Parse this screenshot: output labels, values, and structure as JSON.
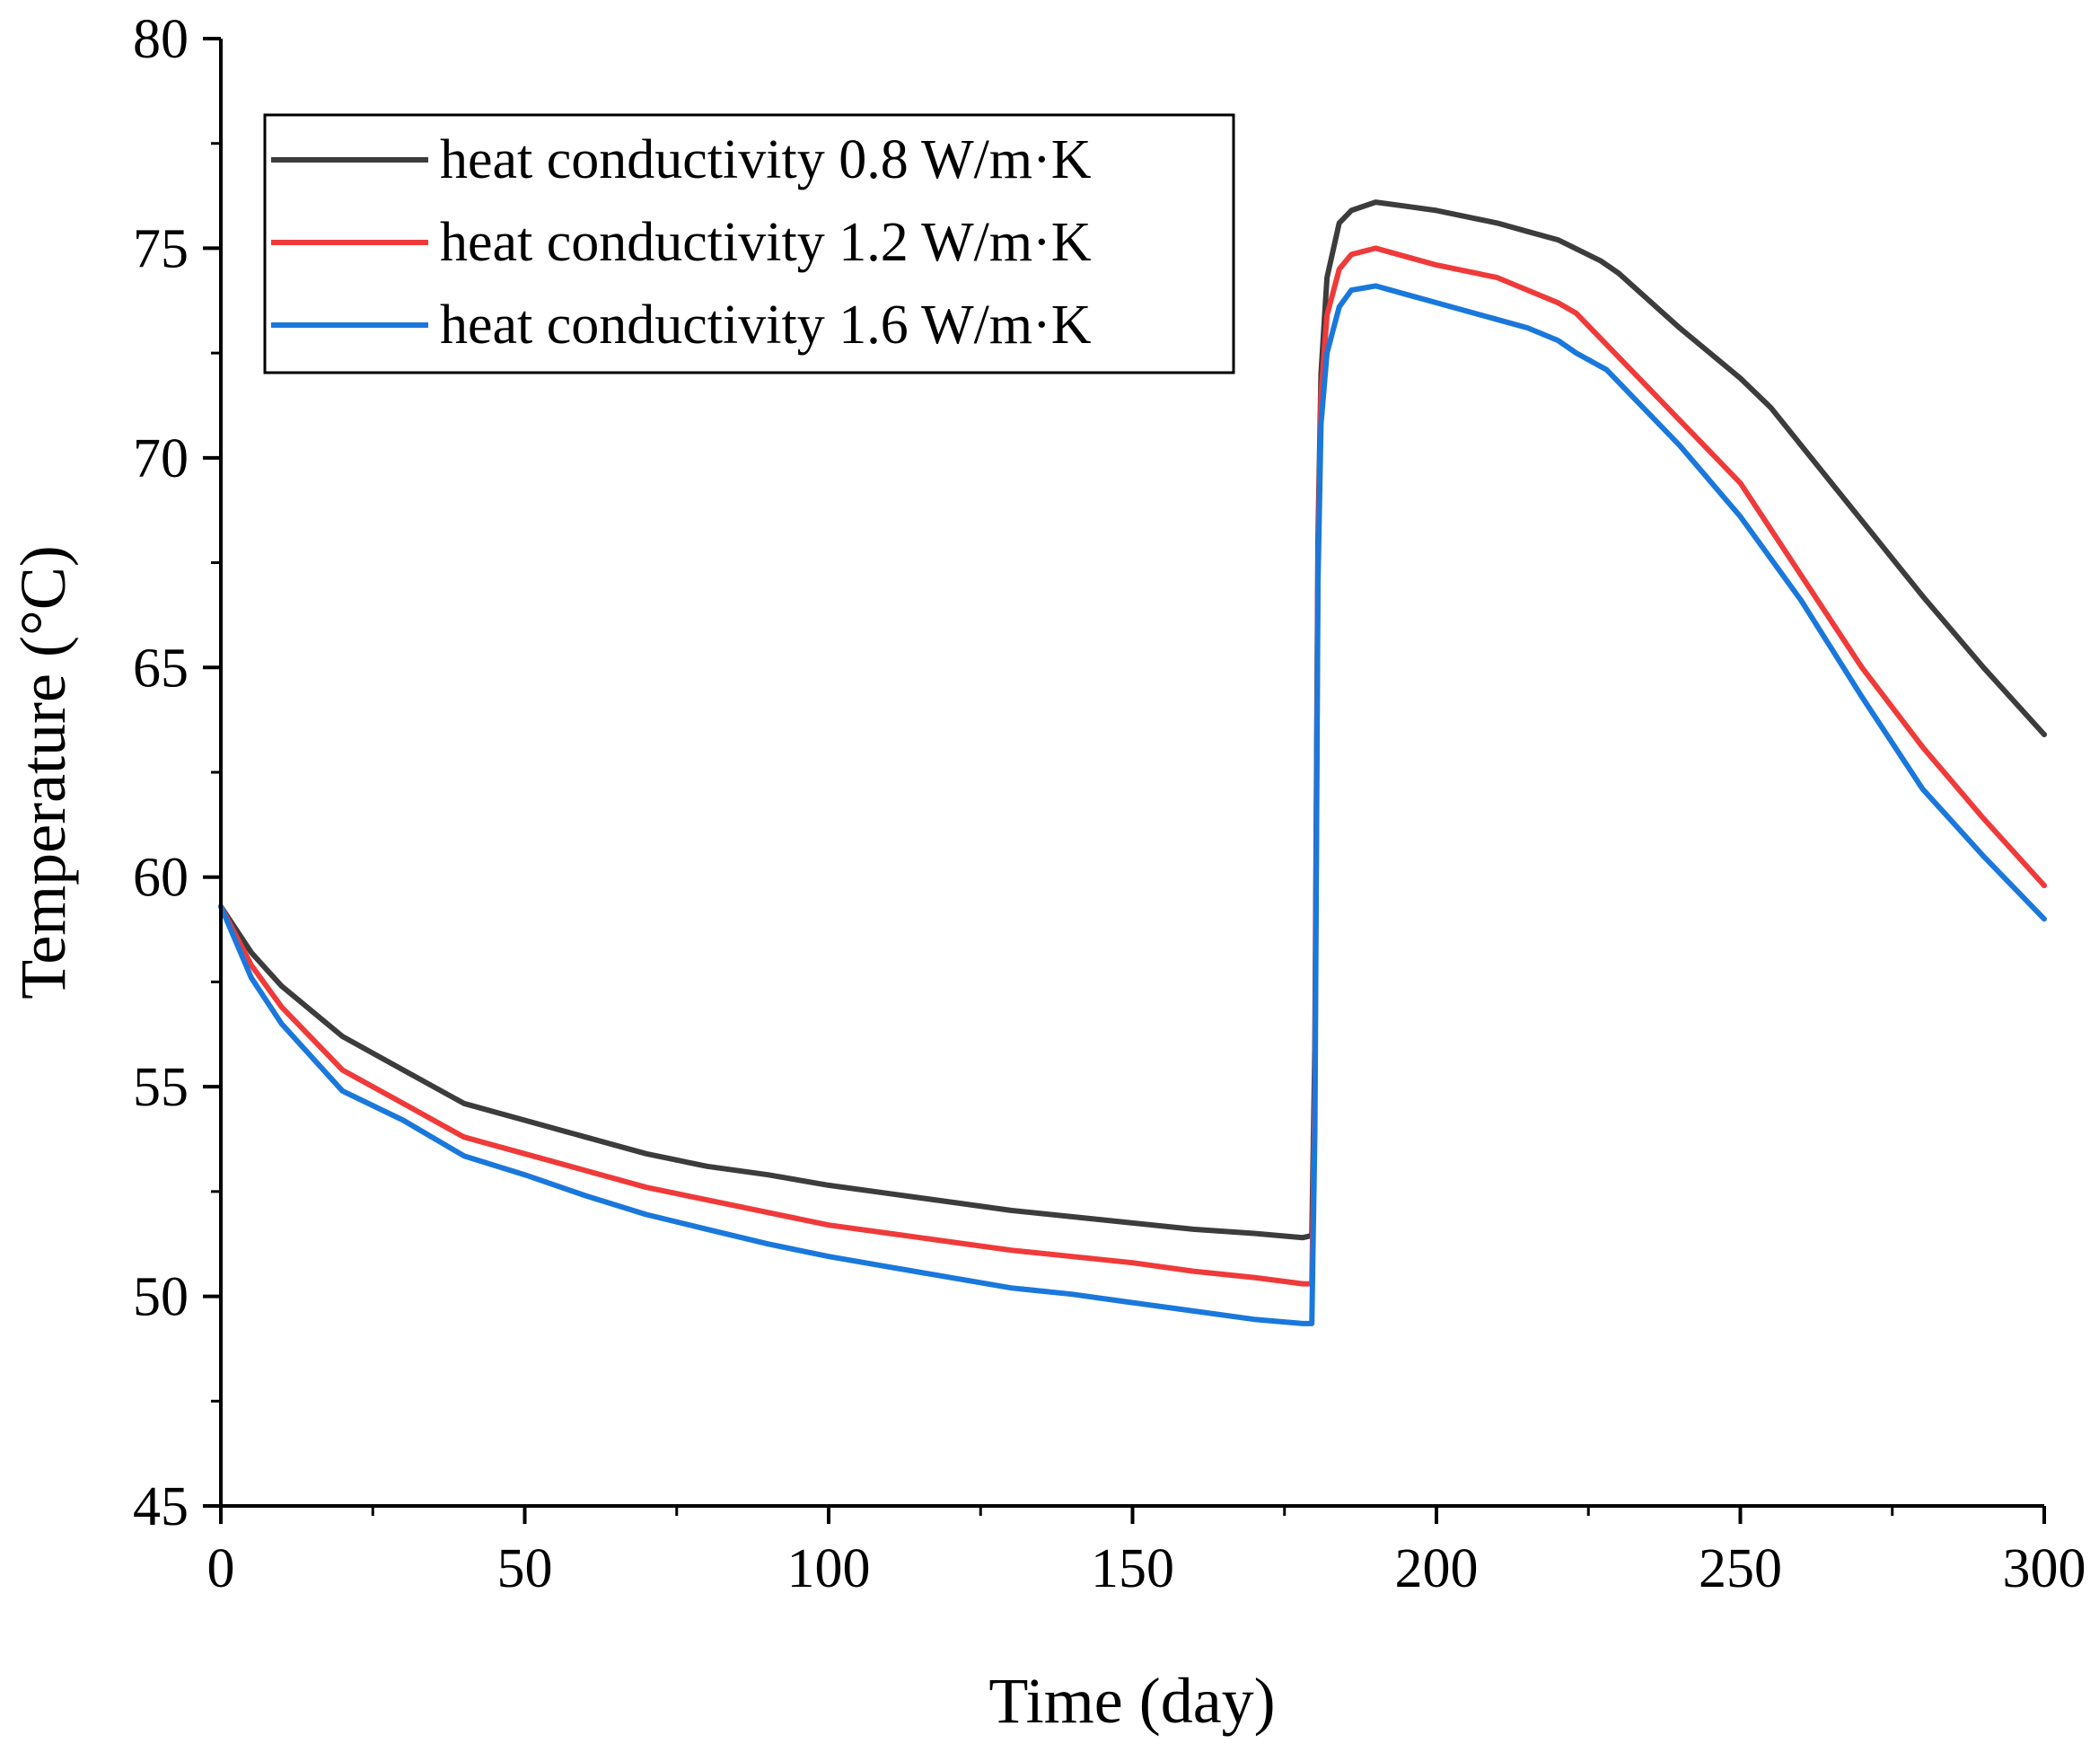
{
  "chart_data": {
    "type": "line",
    "title": "",
    "xlabel": "Time (day)",
    "ylabel": "Temperature (°C)",
    "xlim": [
      0,
      300
    ],
    "ylim": [
      45,
      80
    ],
    "xticks": [
      0,
      50,
      100,
      150,
      200,
      250,
      300
    ],
    "yticks": [
      45,
      50,
      55,
      60,
      65,
      70,
      75,
      80
    ],
    "xtick_labels": [
      "0",
      "50",
      "100",
      "150",
      "200",
      "250",
      "300"
    ],
    "ytick_labels": [
      "45",
      "50",
      "55",
      "60",
      "65",
      "70",
      "75",
      "80"
    ],
    "grid": false,
    "legend_position": "top-left",
    "series": [
      {
        "name": "heat conductivity 0.8 W/m·K",
        "color": "#3c3c3c",
        "x": [
          0,
          5,
          10,
          20,
          30,
          40,
          50,
          60,
          70,
          80,
          90,
          100,
          110,
          120,
          130,
          140,
          150,
          160,
          170,
          178,
          179.5,
          180,
          180.5,
          181,
          182,
          184,
          186,
          190,
          195,
          200,
          210,
          215,
          220,
          227,
          230,
          240,
          250,
          255,
          260,
          270,
          280,
          290,
          300
        ],
        "values": [
          59.3,
          58.2,
          57.4,
          56.2,
          55.4,
          54.6,
          54.2,
          53.8,
          53.4,
          53.1,
          52.9,
          52.65,
          52.45,
          52.25,
          52.05,
          51.9,
          51.75,
          51.6,
          51.5,
          51.4,
          51.45,
          56.0,
          68.0,
          72.0,
          74.3,
          75.6,
          75.9,
          76.1,
          76.0,
          75.9,
          75.6,
          75.4,
          75.2,
          74.7,
          74.4,
          73.1,
          71.9,
          71.2,
          70.3,
          68.5,
          66.7,
          65.0,
          63.4
        ]
      },
      {
        "name": "heat conductivity 1.2 W/m·K",
        "color": "#f03a3a",
        "x": [
          0,
          5,
          10,
          20,
          30,
          40,
          50,
          60,
          70,
          80,
          90,
          100,
          110,
          120,
          130,
          140,
          150,
          160,
          170,
          178,
          179.5,
          180,
          180.5,
          181,
          182,
          184,
          186,
          190,
          195,
          200,
          210,
          215,
          220,
          223,
          230,
          240,
          250,
          255,
          260,
          270,
          280,
          290,
          300
        ],
        "values": [
          59.3,
          57.9,
          56.9,
          55.4,
          54.6,
          53.8,
          53.4,
          53.0,
          52.6,
          52.3,
          52.0,
          51.7,
          51.5,
          51.3,
          51.1,
          50.95,
          50.8,
          50.6,
          50.45,
          50.3,
          50.3,
          55.0,
          67.5,
          71.5,
          73.4,
          74.5,
          74.85,
          75.0,
          74.8,
          74.6,
          74.3,
          74.0,
          73.7,
          73.45,
          72.4,
          70.9,
          69.4,
          68.3,
          67.2,
          65.0,
          63.1,
          61.4,
          59.8
        ]
      },
      {
        "name": "heat conductivity 1.6 W/m·K",
        "color": "#1a78dc",
        "x": [
          0,
          5,
          10,
          20,
          30,
          40,
          50,
          60,
          70,
          80,
          90,
          100,
          110,
          120,
          130,
          140,
          150,
          160,
          170,
          178,
          179.5,
          180,
          180.5,
          181,
          182,
          184,
          186,
          190,
          195,
          200,
          210,
          215,
          220,
          223,
          228,
          230,
          240,
          250,
          255,
          260,
          270,
          280,
          290,
          300
        ],
        "values": [
          59.3,
          57.6,
          56.5,
          54.9,
          54.2,
          53.35,
          52.9,
          52.4,
          51.95,
          51.6,
          51.25,
          50.95,
          50.7,
          50.45,
          50.2,
          50.05,
          49.85,
          49.65,
          49.45,
          49.35,
          49.35,
          54.0,
          67.0,
          70.8,
          72.5,
          73.6,
          74.0,
          74.1,
          73.9,
          73.7,
          73.3,
          73.1,
          72.8,
          72.5,
          72.1,
          71.8,
          70.3,
          68.6,
          67.6,
          66.6,
          64.3,
          62.1,
          60.5,
          59.0
        ]
      }
    ]
  }
}
